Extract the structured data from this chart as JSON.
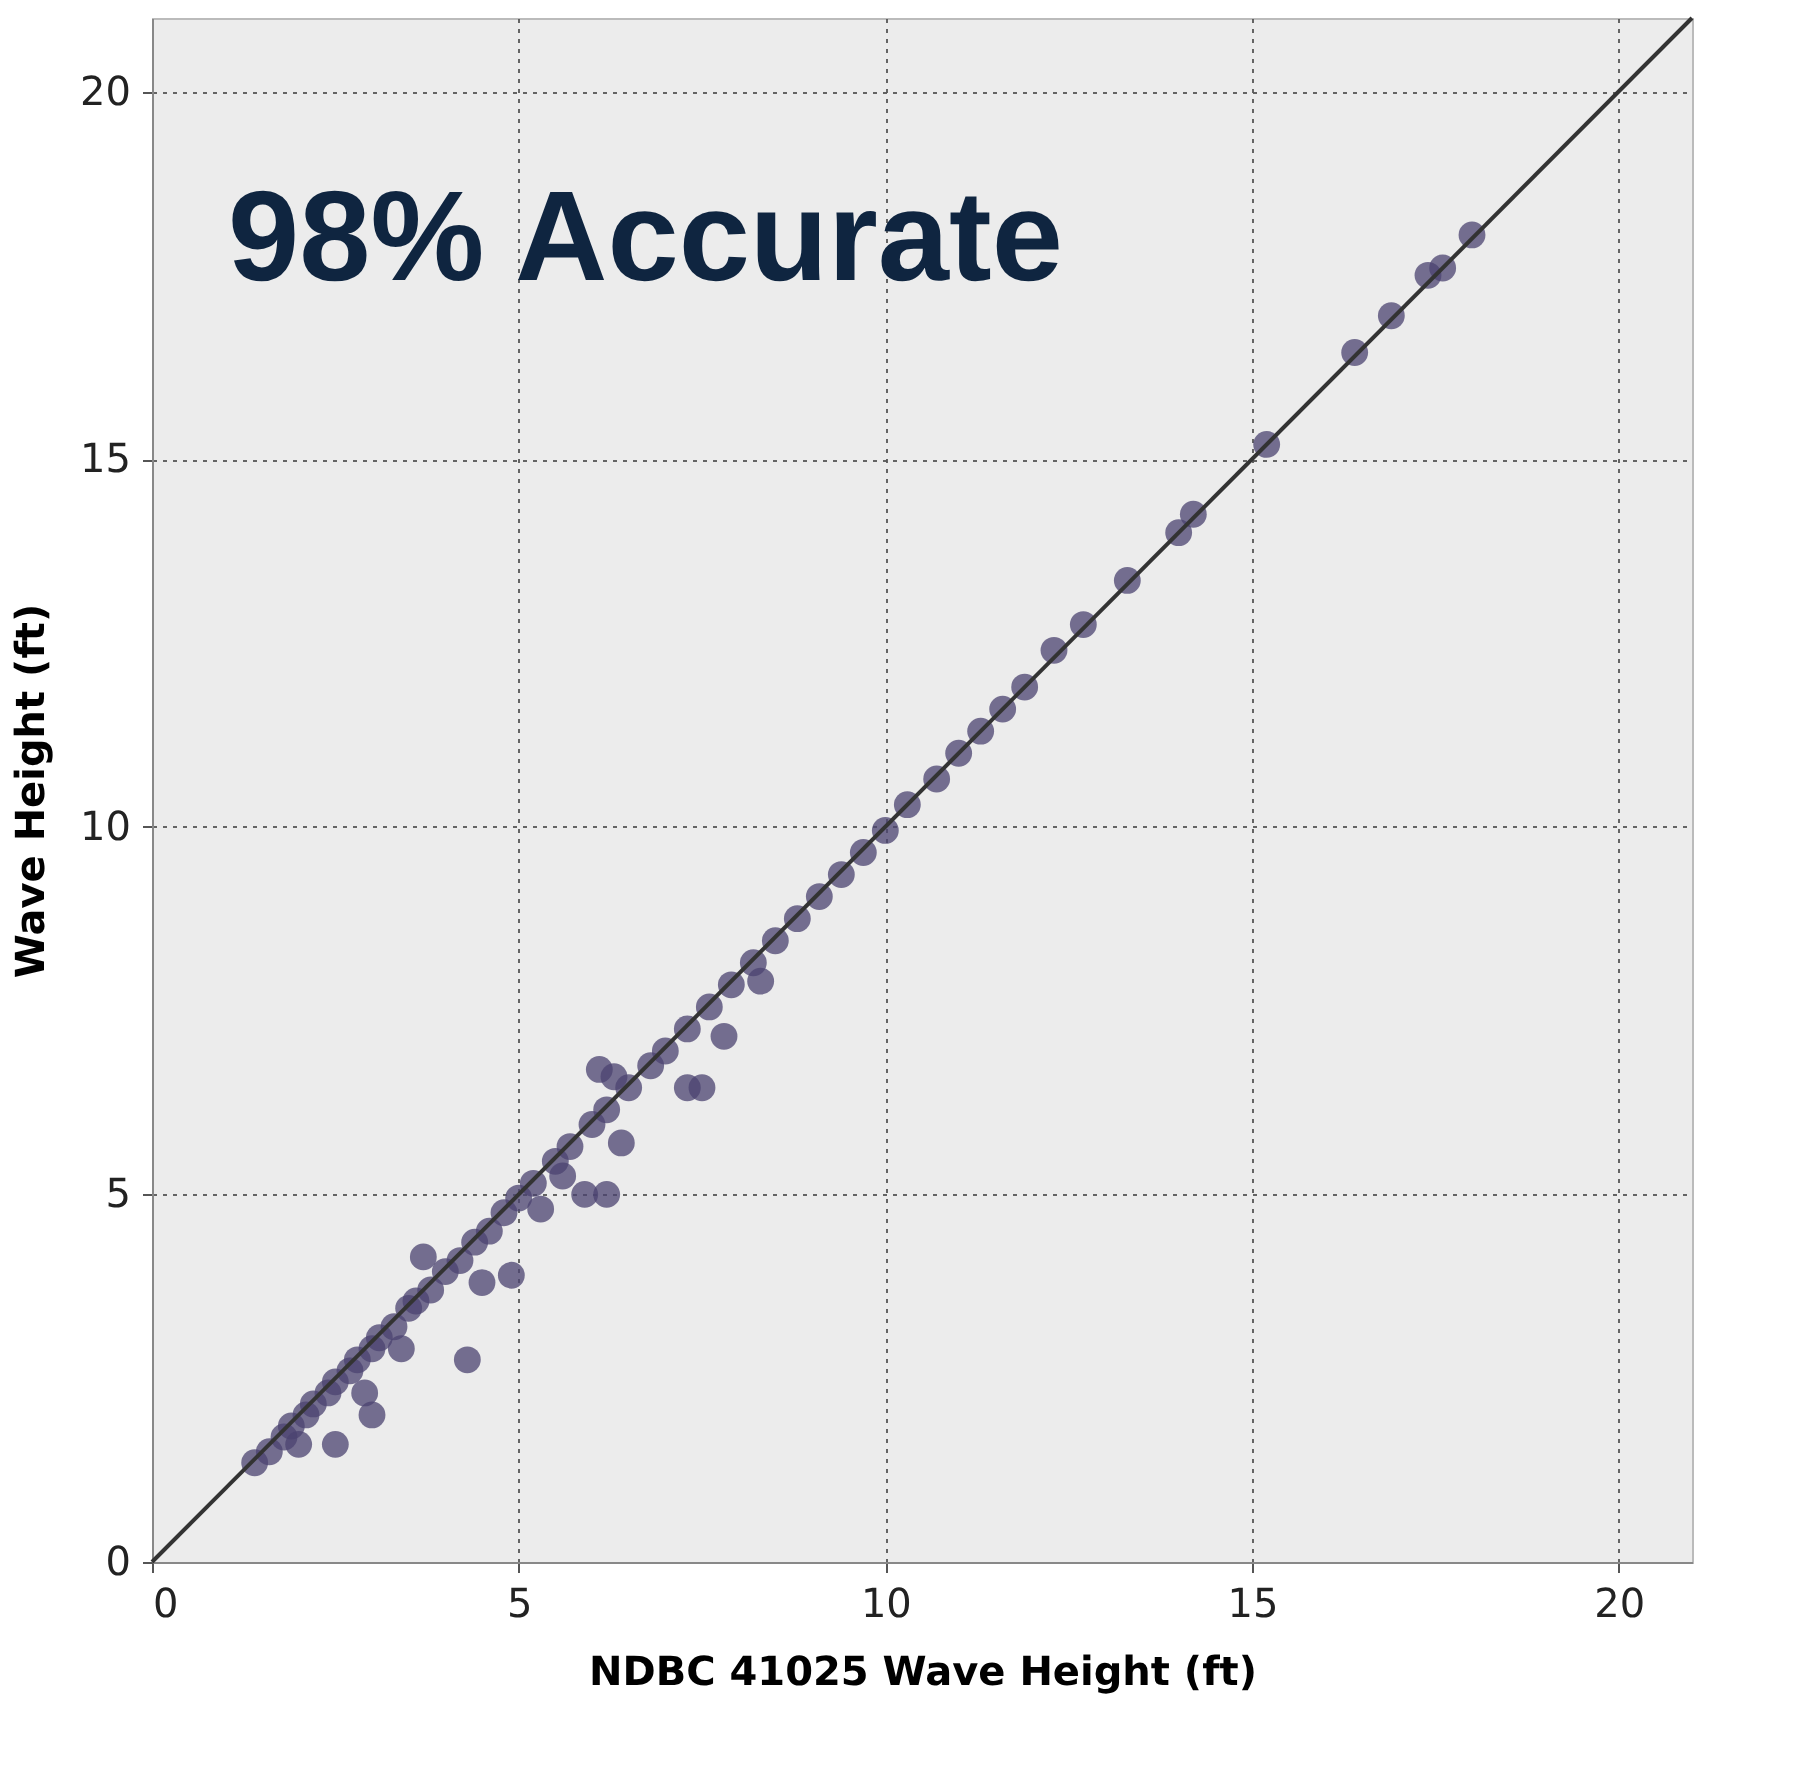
{
  "chart_data": {
    "type": "scatter",
    "xlabel": "NDBC 41025 Wave Height (ft)",
    "ylabel": "Wave Height (ft)",
    "annotations": [
      "98% Accurate"
    ],
    "xlim": [
      0,
      21
    ],
    "ylim": [
      0,
      21
    ],
    "xticks": [
      0,
      5,
      10,
      15,
      20
    ],
    "yticks": [
      0,
      5,
      10,
      15,
      20
    ],
    "grid": true,
    "series": [
      {
        "marker": "circle",
        "color": "#4b4370",
        "x": [
          1.4,
          1.6,
          1.8,
          1.9,
          2.1,
          2.2,
          2.4,
          2.5,
          2.7,
          2.8,
          3.0,
          3.1,
          3.3,
          3.5,
          3.6,
          3.8,
          4.0,
          4.2,
          4.4,
          4.6,
          4.8,
          5.0,
          5.2,
          5.5,
          5.7,
          6.0,
          6.2,
          6.5,
          6.8,
          7.0,
          7.3,
          7.6,
          7.9,
          8.2,
          8.5,
          8.8,
          9.1,
          9.4,
          9.7,
          10.0,
          10.3,
          10.7,
          11.0,
          11.3,
          11.6,
          11.9,
          12.3,
          12.7,
          13.3,
          14.0,
          14.2,
          15.2,
          16.4,
          16.9,
          17.4,
          17.6,
          18.0,
          4.3,
          3.7,
          4.9,
          6.1,
          6.3,
          6.2,
          5.9,
          7.3,
          7.5,
          7.8,
          8.3,
          5.6,
          3.0,
          2.5,
          6.4,
          2.0,
          2.9,
          3.4,
          4.5,
          5.3
        ],
        "values": [
          1.35,
          1.5,
          1.7,
          1.85,
          2.0,
          2.15,
          2.3,
          2.45,
          2.6,
          2.75,
          2.9,
          3.05,
          3.2,
          3.45,
          3.55,
          3.7,
          3.95,
          4.1,
          4.35,
          4.5,
          4.75,
          4.95,
          5.15,
          5.45,
          5.65,
          5.95,
          6.15,
          6.45,
          6.75,
          6.95,
          7.25,
          7.55,
          7.85,
          8.15,
          8.45,
          8.75,
          9.05,
          9.35,
          9.65,
          9.95,
          10.3,
          10.65,
          11.0,
          11.3,
          11.6,
          11.9,
          12.4,
          12.75,
          13.35,
          14.0,
          14.25,
          15.2,
          16.45,
          16.95,
          17.5,
          17.6,
          18.05,
          2.75,
          4.15,
          3.9,
          6.7,
          6.6,
          5.0,
          5.0,
          6.45,
          6.45,
          7.15,
          7.9,
          5.25,
          2.0,
          1.6,
          5.7,
          1.6,
          2.3,
          2.9,
          3.8,
          4.8
        ]
      },
      {
        "type": "line",
        "color": "#333333",
        "x": [
          0,
          21
        ],
        "values": [
          0,
          21
        ]
      }
    ]
  }
}
